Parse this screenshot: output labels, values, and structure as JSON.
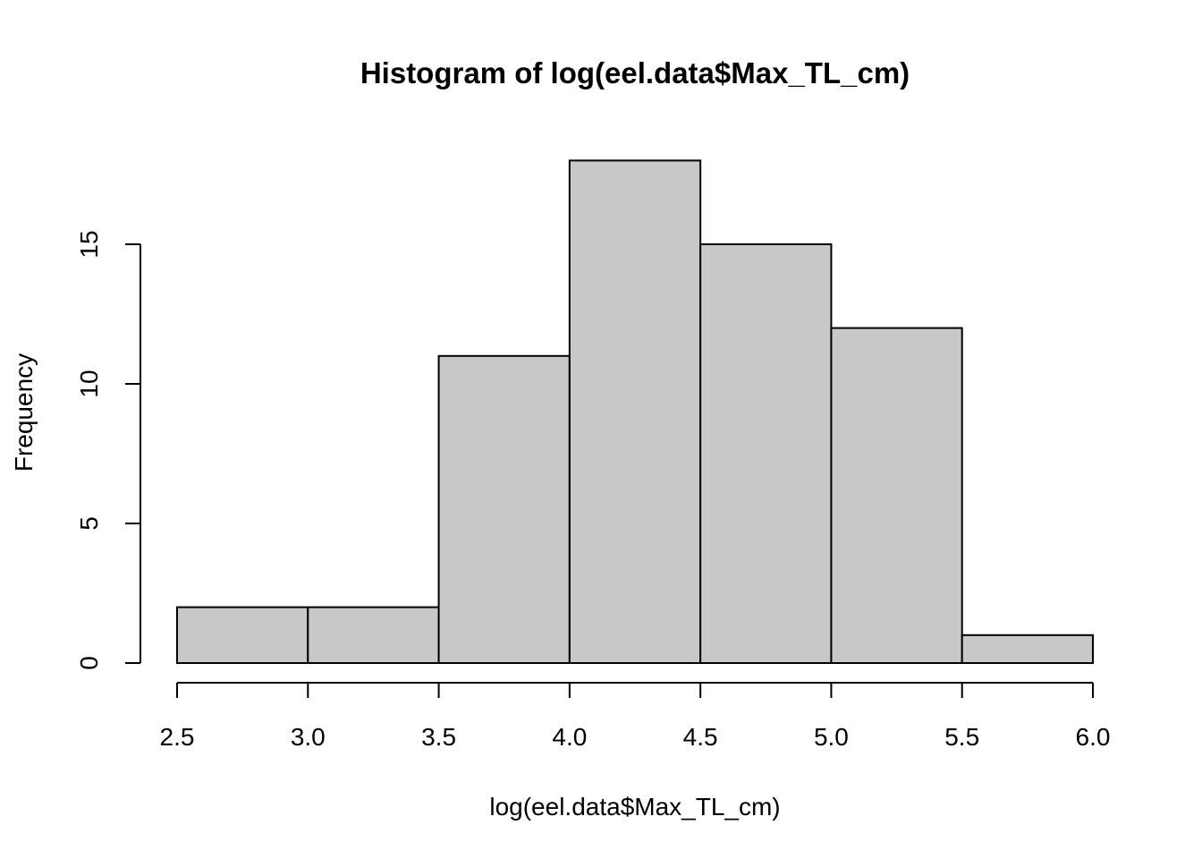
{
  "chart_data": {
    "type": "bar",
    "title": "Histogram of log(eel.data$Max_TL_cm)",
    "xlabel": "log(eel.data$Max_TL_cm)",
    "ylabel": "Frequency",
    "bins": [
      {
        "start": 2.5,
        "end": 3.0,
        "count": 2
      },
      {
        "start": 3.0,
        "end": 3.5,
        "count": 2
      },
      {
        "start": 3.5,
        "end": 4.0,
        "count": 11
      },
      {
        "start": 4.0,
        "end": 4.5,
        "count": 18
      },
      {
        "start": 4.5,
        "end": 5.0,
        "count": 15
      },
      {
        "start": 5.0,
        "end": 5.5,
        "count": 12
      },
      {
        "start": 5.5,
        "end": 6.0,
        "count": 1
      }
    ],
    "x_ticks": [
      "2.5",
      "3.0",
      "3.5",
      "4.0",
      "4.5",
      "5.0",
      "5.5",
      "6.0"
    ],
    "y_ticks": [
      "0",
      "5",
      "10",
      "15"
    ],
    "xlim": [
      2.5,
      6.0
    ],
    "ylim": [
      0,
      18
    ],
    "grid": false,
    "legend": "none",
    "colors": {
      "bar_fill": "#c8c8c8",
      "bar_stroke": "#000000",
      "axis": "#000000",
      "background": "#ffffff"
    }
  }
}
